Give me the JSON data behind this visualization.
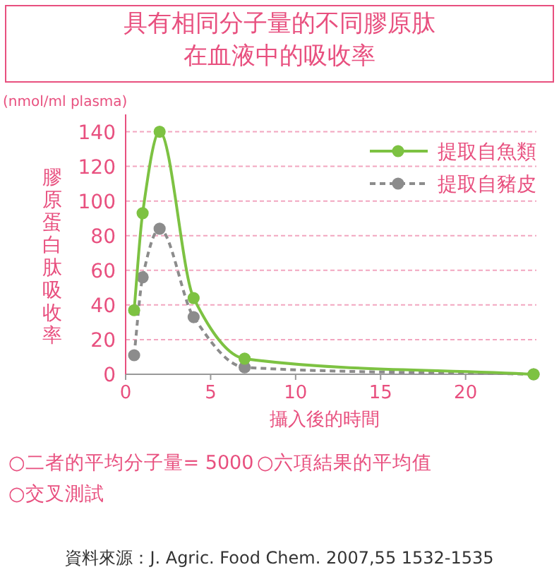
{
  "chart_data": {
    "type": "line",
    "title": "具有相同分子量的不同膠原肽在血液中的吸收率",
    "xlabel": "攝入後的時間",
    "ylabel": "膠原蛋白肽吸收率",
    "x": [
      0.5,
      1,
      2,
      4,
      7,
      24
    ],
    "series": [
      {
        "name": "提取自豬皮",
        "color": "#8c8c8c",
        "values": [
          11,
          56,
          84,
          33,
          4,
          0
        ],
        "line_style": "dashed"
      },
      {
        "name": "提取自魚類",
        "color": "#7dc242",
        "values": [
          37,
          93,
          140,
          44,
          9,
          0
        ],
        "line_style": "solid"
      }
    ],
    "xlim": [
      0,
      24
    ],
    "ylim": [
      0,
      150
    ],
    "xticks": [
      0,
      5,
      10,
      15,
      20
    ],
    "yticks": [
      0,
      20,
      40,
      60,
      80,
      100,
      120,
      140
    ],
    "grid": "y",
    "legend": "top right",
    "marker": "circle",
    "annotations": [
      "(nmol/ml plasma)",
      "○二者的平均分子量= 5000",
      "○六項結果的平均值",
      "○交叉測試",
      "資料來源：J. Agric. Food Chem. 2007,55 1532-1535"
    ]
  }
}
